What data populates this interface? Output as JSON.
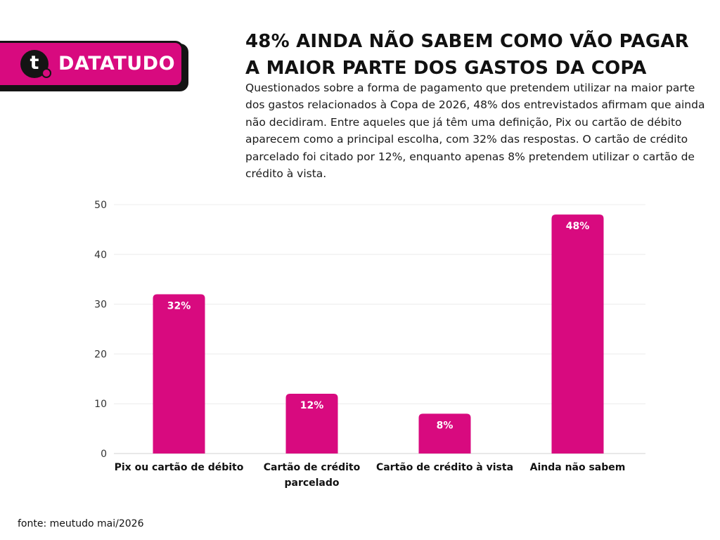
{
  "brand": {
    "name": "DATATUDO",
    "mark": "t",
    "color": "#d80a7f"
  },
  "header": {
    "title": "48% AINDA NÃO SABEM COMO VÃO PAGAR A MAIOR PARTE DOS GASTOS DA COPA",
    "subtitle": "Questionados sobre a forma de pagamento que pretendem utilizar na maior parte dos gastos relacionados à Copa de 2026, 48% dos entrevistados afirmam que ainda não decidiram. Entre aqueles que já têm uma definição, Pix ou cartão de débito aparecem como a principal escolha, com 32% das respostas. O cartão de crédito parcelado foi citado por 12%, enquanto apenas 8% pretendem utilizar o cartão de crédito à vista."
  },
  "chart_data": {
    "type": "bar",
    "categories": [
      [
        "Pix ou cartão de débito"
      ],
      [
        "Cartão de crédito",
        "parcelado"
      ],
      [
        "Cartão de crédito à vista"
      ],
      [
        "Ainda não sabem"
      ]
    ],
    "values": [
      32,
      12,
      8,
      48
    ],
    "data_labels": [
      "32%",
      "12%",
      "8%",
      "48%"
    ],
    "ylim": [
      0,
      50
    ],
    "yticks": [
      0,
      10,
      20,
      30,
      40,
      50
    ],
    "grid": true,
    "bar_color": "#d80a7f",
    "label_color": "#ffffff",
    "xlabel": "",
    "ylabel": ""
  },
  "footer": {
    "source": "fonte: meutudo mai/2026"
  }
}
